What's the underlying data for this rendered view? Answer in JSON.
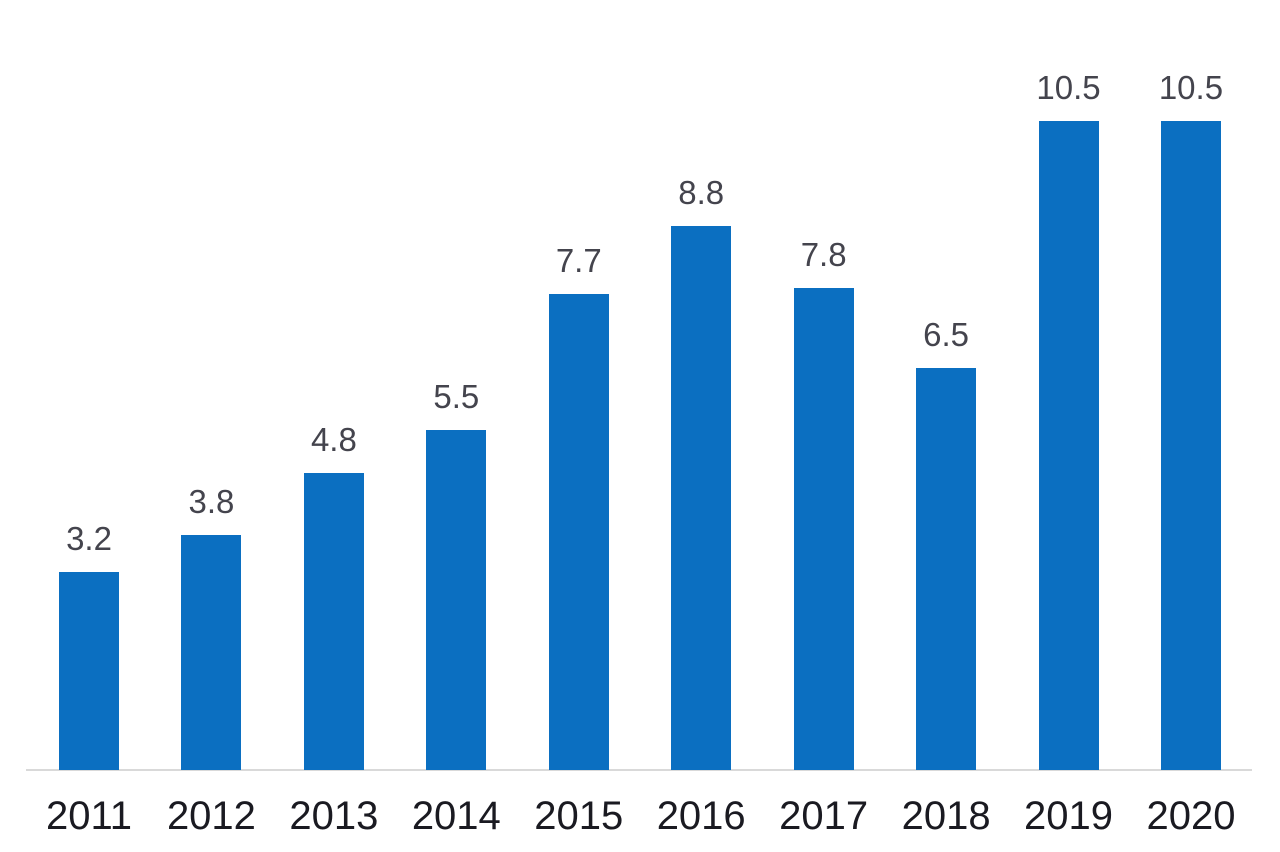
{
  "chart_data": {
    "type": "bar",
    "categories": [
      "2011",
      "2012",
      "2013",
      "2014",
      "2015",
      "2016",
      "2017",
      "2018",
      "2019",
      "2020"
    ],
    "values": [
      3.2,
      3.8,
      4.8,
      5.5,
      7.7,
      8.8,
      7.8,
      6.5,
      10.5,
      10.5
    ],
    "data_labels": [
      "3.2",
      "3.8",
      "4.8",
      "5.5",
      "7.7",
      "8.8",
      "7.8",
      "6.5",
      "10.5",
      "10.5"
    ],
    "title": "",
    "xlabel": "",
    "ylabel": "",
    "ylim": [
      0,
      10.5
    ],
    "grid": false,
    "legend": null,
    "y_axis_visible": false,
    "colors": {
      "bar": "#0b6fc1",
      "value_label": "#44444d",
      "category_label": "#1a1a21",
      "axis_line": "#d9d9d9",
      "background": "#ffffff"
    }
  }
}
